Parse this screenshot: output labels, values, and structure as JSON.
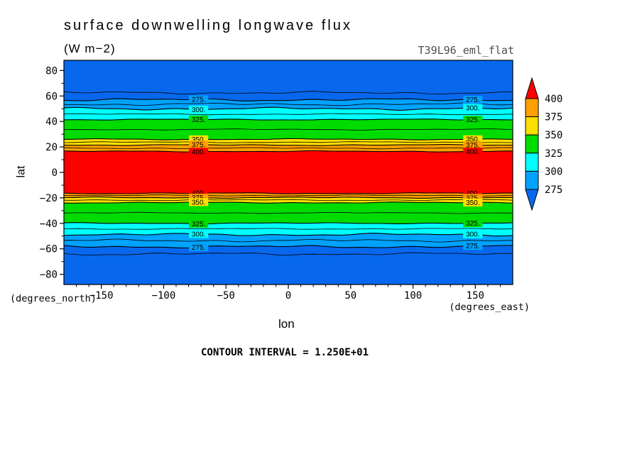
{
  "title": "surface downwelling longwave flux",
  "units_label": "(W m−2)",
  "run_label": "T39L96_eml_flat",
  "axes": {
    "xlabel": "lon",
    "ylabel": "lat",
    "x_units": "(degrees_east)",
    "y_units": "(degrees_north)"
  },
  "contour_note": "CONTOUR INTERVAL = 1.250E+01",
  "chart_data": {
    "type": "heatmap",
    "subtype": "filled_contour",
    "title": "surface downwelling longwave flux",
    "units": "W m-2",
    "xlabel": "lon",
    "ylabel": "lat",
    "x_range": [
      -180,
      180
    ],
    "y_range": [
      -88,
      88
    ],
    "x_ticks": [
      -150,
      -100,
      -50,
      0,
      50,
      100,
      150
    ],
    "y_ticks": [
      80,
      60,
      40,
      20,
      0,
      -20,
      -40,
      -60,
      -80
    ],
    "contour_interval": 12.5,
    "label_lons": [
      -72,
      146
    ],
    "contours": [
      {
        "id": "N262",
        "level": 262.5,
        "lat": 62.5,
        "labeled": false
      },
      {
        "id": "N275",
        "level": 275,
        "lat": 57.0,
        "labeled": true
      },
      {
        "id": "N287",
        "level": 287.5,
        "lat": 53.5,
        "labeled": false
      },
      {
        "id": "N300",
        "level": 300,
        "lat": 50.0,
        "labeled": true
      },
      {
        "id": "N312",
        "level": 312.5,
        "lat": 45.7,
        "labeled": false
      },
      {
        "id": "N325",
        "level": 325,
        "lat": 41.5,
        "labeled": true
      },
      {
        "id": "N337",
        "level": 337.5,
        "lat": 33.7,
        "labeled": false
      },
      {
        "id": "N350",
        "level": 350,
        "lat": 26.0,
        "labeled": true
      },
      {
        "id": "N362",
        "level": 362.5,
        "lat": 23.7,
        "labeled": false
      },
      {
        "id": "N375",
        "level": 375,
        "lat": 21.5,
        "labeled": true
      },
      {
        "id": "N387",
        "level": 387.5,
        "lat": 19.0,
        "labeled": false
      },
      {
        "id": "N400",
        "level": 400,
        "lat": 16.5,
        "labeled": true
      },
      {
        "id": "S400",
        "level": 400,
        "lat": -16.4,
        "labeled": true
      },
      {
        "id": "S387",
        "level": 387.5,
        "lat": -18.1,
        "labeled": false
      },
      {
        "id": "S375",
        "level": 375,
        "lat": -19.8,
        "labeled": true
      },
      {
        "id": "S362",
        "level": 362.5,
        "lat": -21.7,
        "labeled": false
      },
      {
        "id": "S350",
        "level": 350,
        "lat": -23.7,
        "labeled": true
      },
      {
        "id": "S337",
        "level": 337.5,
        "lat": -31.8,
        "labeled": false
      },
      {
        "id": "S325",
        "level": 325,
        "lat": -39.9,
        "labeled": true
      },
      {
        "id": "S312",
        "level": 312.5,
        "lat": -44.3,
        "labeled": false
      },
      {
        "id": "S300",
        "level": 300,
        "lat": -48.8,
        "labeled": true
      },
      {
        "id": "S287",
        "level": 287.5,
        "lat": -53.5,
        "labeled": false
      },
      {
        "id": "S275",
        "level": 275,
        "lat": -58.3,
        "labeled": true
      },
      {
        "id": "S262",
        "level": 262.5,
        "lat": -64.0,
        "labeled": false
      }
    ],
    "bands": [
      {
        "color": "#0768ee",
        "top": "TOP",
        "bottom": "N275",
        "range": "<275"
      },
      {
        "color": "#00a2ff",
        "top": "N275",
        "bottom": "N300",
        "range": "275-300"
      },
      {
        "color": "#00ffff",
        "top": "N300",
        "bottom": "N325",
        "range": "300-325"
      },
      {
        "color": "#00dc00",
        "top": "N325",
        "bottom": "N350",
        "range": "325-350"
      },
      {
        "color": "#ffdf00",
        "top": "N350",
        "bottom": "N375",
        "range": "350-375"
      },
      {
        "color": "#ff9f00",
        "top": "N375",
        "bottom": "N400",
        "range": "375-400"
      },
      {
        "color": "#ff0000",
        "top": "N400",
        "bottom": "S400",
        "range": ">400"
      },
      {
        "color": "#ff9f00",
        "top": "S400",
        "bottom": "S375",
        "range": "375-400"
      },
      {
        "color": "#ffdf00",
        "top": "S375",
        "bottom": "S350",
        "range": "350-375"
      },
      {
        "color": "#00dc00",
        "top": "S350",
        "bottom": "S325",
        "range": "325-350"
      },
      {
        "color": "#00ffff",
        "top": "S325",
        "bottom": "S300",
        "range": "300-325"
      },
      {
        "color": "#00a2ff",
        "top": "S300",
        "bottom": "S275",
        "range": "275-300"
      },
      {
        "color": "#0768ee",
        "top": "S275",
        "bottom": "BOTTOM",
        "range": "<275"
      }
    ],
    "colorbar": {
      "tick_labels": [
        "400",
        "375",
        "350",
        "325",
        "300",
        "275"
      ],
      "segments": [
        "#ff0000",
        "#ff9f00",
        "#ffdf00",
        "#00dc00",
        "#00ffff",
        "#00a2ff",
        "#0768ee"
      ]
    }
  }
}
